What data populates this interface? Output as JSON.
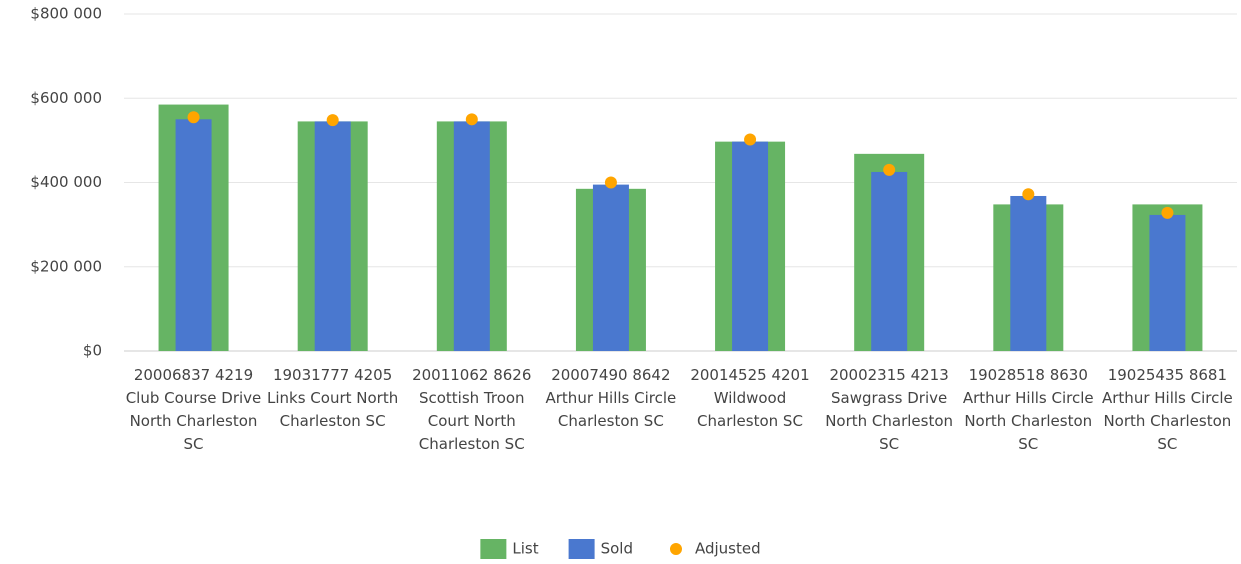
{
  "chart_data": {
    "type": "bar",
    "categories": [
      "20006837 4219 Club Course Drive North Charleston SC",
      "19031777 4205 Links Court North Charleston SC",
      "20011062 8626 Scottish Troon Court North Charleston SC",
      "20007490 8642 Arthur Hills Circle Charleston SC",
      "20014525 4201 Wildwood Charleston SC",
      "20002315 4213 Sawgrass Drive North Charleston SC",
      "19028518 8630 Arthur Hills Circle North Charleston SC",
      "19025435 8681 Arthur Hills Circle North Charleston SC"
    ],
    "series": [
      {
        "name": "List",
        "color": "#66b464",
        "values": [
          585000,
          545000,
          545000,
          385000,
          497000,
          468000,
          348000,
          348000
        ]
      },
      {
        "name": "Sold",
        "color": "#4a78cf",
        "values": [
          550000,
          545000,
          545000,
          395000,
          497000,
          425000,
          368000,
          323000
        ]
      },
      {
        "name": "Adjusted",
        "color": "#ffa500",
        "values": [
          555000,
          548000,
          550000,
          400000,
          502000,
          430000,
          372000,
          328000
        ]
      }
    ],
    "ylim": [
      0,
      800000
    ],
    "yticks": [
      {
        "value": 0,
        "label": "$0"
      },
      {
        "value": 200000,
        "label": "$200 000"
      },
      {
        "value": 400000,
        "label": "$400 000"
      },
      {
        "value": 600000,
        "label": "$600 000"
      },
      {
        "value": 800000,
        "label": "$800 000"
      }
    ],
    "grid": true,
    "legend": "bottom"
  }
}
